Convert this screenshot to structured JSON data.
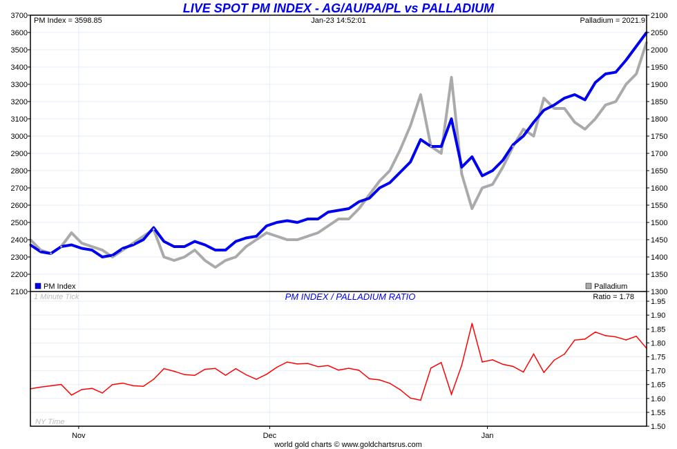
{
  "chart_data": [
    {
      "type": "line",
      "title": "LIVE SPOT PM INDEX - AG/AU/PA/PL vs  PALLADIUM",
      "header_left": "PM Index = 3598.85",
      "header_center": "Jan-23  14:52:01",
      "header_right": "Palladium = 2021.9",
      "x_ticks": [
        {
          "label": "Nov",
          "index": 4.7
        },
        {
          "label": "Dec",
          "index": 23.3
        },
        {
          "label": "Jan",
          "index": 44.5
        }
      ],
      "y_left": {
        "label": "PM Index",
        "ylim": [
          2100,
          3700
        ],
        "ticks": [
          2100,
          2200,
          2300,
          2400,
          2500,
          2600,
          2700,
          2800,
          2900,
          3000,
          3100,
          3200,
          3300,
          3400,
          3500,
          3600,
          3700
        ]
      },
      "y_right": {
        "label": "Palladium",
        "ylim": [
          1300,
          2100
        ],
        "ticks": [
          1300,
          1350,
          1400,
          1450,
          1500,
          1550,
          1600,
          1650,
          1700,
          1750,
          1800,
          1850,
          1900,
          1950,
          2000,
          2050,
          2100
        ]
      },
      "legend": [
        {
          "name": "PM Index",
          "color": "#0000ee",
          "position": "bottom-left"
        },
        {
          "name": "Palladium",
          "color": "#aaaaaa",
          "position": "bottom-right"
        }
      ],
      "series": [
        {
          "name": "PM Index",
          "axis": "left",
          "color": "#0000ee",
          "values": [
            2370,
            2330,
            2320,
            2360,
            2370,
            2350,
            2340,
            2300,
            2310,
            2350,
            2370,
            2400,
            2470,
            2390,
            2360,
            2360,
            2390,
            2370,
            2340,
            2340,
            2390,
            2410,
            2420,
            2480,
            2500,
            2510,
            2500,
            2520,
            2520,
            2560,
            2570,
            2580,
            2620,
            2640,
            2700,
            2730,
            2790,
            2850,
            2980,
            2940,
            2940,
            3100,
            2820,
            2880,
            2770,
            2800,
            2860,
            2950,
            3000,
            3080,
            3150,
            3180,
            3220,
            3240,
            3210,
            3310,
            3360,
            3370,
            3440,
            3520,
            3600
          ]
        },
        {
          "name": "Palladium",
          "axis": "right",
          "color": "#aaaaaa",
          "values": [
            1450,
            1420,
            1410,
            1430,
            1470,
            1440,
            1430,
            1420,
            1400,
            1420,
            1440,
            1460,
            1480,
            1400,
            1390,
            1400,
            1420,
            1390,
            1370,
            1390,
            1400,
            1430,
            1450,
            1470,
            1460,
            1450,
            1450,
            1460,
            1470,
            1490,
            1510,
            1510,
            1540,
            1580,
            1620,
            1650,
            1710,
            1780,
            1870,
            1720,
            1700,
            1920,
            1640,
            1540,
            1600,
            1610,
            1660,
            1720,
            1770,
            1750,
            1860,
            1830,
            1830,
            1790,
            1770,
            1800,
            1840,
            1850,
            1900,
            1930,
            2022
          ]
        }
      ]
    },
    {
      "type": "line",
      "title": "PM INDEX / PALLADIUM RATIO",
      "header_left": "1 Minute Tick",
      "header_right": "Ratio = 1.78",
      "footer_left": "NY Time",
      "y_right": {
        "ylim": [
          1.5,
          1.985
        ],
        "ticks": [
          "1.50",
          "1.55",
          "1.60",
          "1.65",
          "1.70",
          "1.75",
          "1.80",
          "1.85",
          "1.90",
          "1.95"
        ]
      },
      "series": [
        {
          "name": "Ratio",
          "color": "#ff0000",
          "formula": "PM Index / Palladium"
        }
      ]
    }
  ],
  "footer": "world gold charts © www.goldchartsrus.com"
}
